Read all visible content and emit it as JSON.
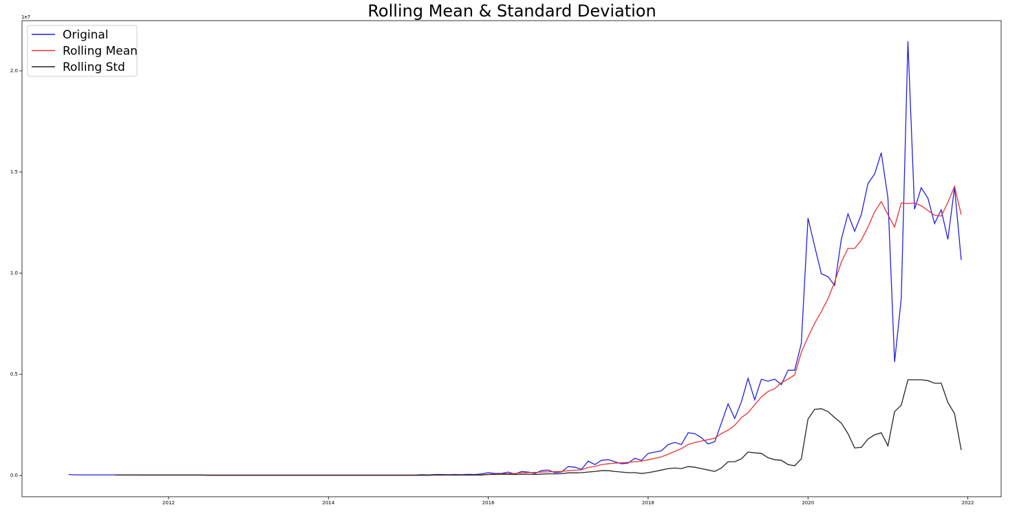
{
  "chart_data": {
    "type": "line",
    "title": "Rolling Mean & Standard Deviation",
    "y_offset_label": "1e7",
    "x": [
      "2010-10",
      "2010-11",
      "2010-12",
      "2011-01",
      "2011-02",
      "2011-03",
      "2011-04",
      "2011-05",
      "2011-06",
      "2011-07",
      "2011-08",
      "2011-09",
      "2011-10",
      "2011-11",
      "2011-12",
      "2012-01",
      "2012-02",
      "2012-03",
      "2012-04",
      "2012-05",
      "2012-06",
      "2012-07",
      "2012-08",
      "2012-09",
      "2012-10",
      "2012-11",
      "2012-12",
      "2013-01",
      "2013-02",
      "2013-03",
      "2013-04",
      "2013-05",
      "2013-06",
      "2013-07",
      "2013-08",
      "2013-09",
      "2013-10",
      "2013-11",
      "2013-12",
      "2014-01",
      "2014-02",
      "2014-03",
      "2014-04",
      "2014-05",
      "2014-06",
      "2014-07",
      "2014-08",
      "2014-09",
      "2014-10",
      "2014-11",
      "2014-12",
      "2015-01",
      "2015-02",
      "2015-03",
      "2015-04",
      "2015-05",
      "2015-06",
      "2015-07",
      "2015-08",
      "2015-09",
      "2015-10",
      "2015-11",
      "2015-12",
      "2016-01",
      "2016-02",
      "2016-03",
      "2016-04",
      "2016-05",
      "2016-06",
      "2016-07",
      "2016-08",
      "2016-09",
      "2016-10",
      "2016-11",
      "2016-12",
      "2017-01",
      "2017-02",
      "2017-03",
      "2017-04",
      "2017-05",
      "2017-06",
      "2017-07",
      "2017-08",
      "2017-09",
      "2017-10",
      "2017-11",
      "2017-12",
      "2018-01",
      "2018-02",
      "2018-03",
      "2018-04",
      "2018-05",
      "2018-06",
      "2018-07",
      "2018-08",
      "2018-09",
      "2018-10",
      "2018-11",
      "2018-12",
      "2019-01",
      "2019-02",
      "2019-03",
      "2019-04",
      "2019-05",
      "2019-06",
      "2019-07",
      "2019-08",
      "2019-09",
      "2019-10",
      "2019-11",
      "2019-12",
      "2020-01",
      "2020-02",
      "2020-03",
      "2020-04",
      "2020-05",
      "2020-06",
      "2020-07",
      "2020-08",
      "2020-09",
      "2020-10",
      "2020-11",
      "2020-12",
      "2021-01",
      "2021-02",
      "2021-03",
      "2021-04",
      "2021-05",
      "2021-06",
      "2021-07",
      "2021-08",
      "2021-09",
      "2021-10",
      "2021-11",
      "2021-12"
    ],
    "series": [
      {
        "name": "Original",
        "color": "#1f1fe0",
        "values": [
          0.005,
          0.003,
          0.003,
          0.003,
          0.003,
          0.003,
          0.003,
          0.003,
          0.003,
          0.003,
          0.003,
          0.002,
          0.002,
          0.002,
          0.002,
          0.002,
          0.002,
          0.002,
          0.002,
          0.002,
          0.002,
          0.002,
          0.002,
          0.002,
          0.002,
          0.002,
          0.002,
          0.002,
          0.002,
          0.002,
          0.002,
          0.002,
          0.002,
          0.002,
          0.002,
          0.002,
          0.002,
          0.002,
          0.002,
          0.002,
          0.002,
          0.002,
          0.002,
          0.002,
          0.002,
          0.002,
          0.002,
          0.002,
          0.002,
          0.002,
          0.002,
          0.002,
          0.002,
          0.004,
          0.003,
          0.005,
          0.005,
          0.004,
          0.005,
          0.004,
          0.006,
          0.005,
          0.008,
          0.014,
          0.01,
          0.01,
          0.017,
          0.007,
          0.02,
          0.017,
          0.01,
          0.024,
          0.027,
          0.014,
          0.017,
          0.044,
          0.041,
          0.03,
          0.071,
          0.054,
          0.075,
          0.078,
          0.068,
          0.058,
          0.061,
          0.085,
          0.075,
          0.109,
          0.116,
          0.122,
          0.153,
          0.163,
          0.153,
          0.211,
          0.207,
          0.187,
          0.156,
          0.167,
          0.259,
          0.354,
          0.282,
          0.364,
          0.48,
          0.374,
          0.476,
          0.466,
          0.476,
          0.449,
          0.52,
          0.52,
          0.653,
          1.272,
          1.133,
          0.997,
          0.983,
          0.939,
          1.167,
          1.293,
          1.207,
          1.289,
          1.442,
          1.49,
          1.595,
          1.371,
          0.561,
          0.874,
          2.146,
          1.316,
          1.422,
          1.371,
          1.245,
          1.313,
          1.167,
          1.425,
          1.065
        ]
      },
      {
        "name": "Rolling Mean",
        "color": "#e8302f",
        "values": [
          null,
          null,
          null,
          null,
          null,
          null,
          null,
          0.003,
          0.003,
          0.003,
          0.003,
          0.003,
          0.003,
          0.003,
          0.003,
          0.003,
          0.003,
          0.003,
          0.003,
          0.003,
          0.003,
          0.002,
          0.002,
          0.002,
          0.002,
          0.002,
          0.002,
          0.002,
          0.002,
          0.002,
          0.002,
          0.002,
          0.002,
          0.002,
          0.002,
          0.002,
          0.002,
          0.002,
          0.002,
          0.002,
          0.002,
          0.002,
          0.002,
          0.002,
          0.002,
          0.002,
          0.002,
          0.002,
          0.002,
          0.002,
          0.002,
          0.002,
          0.002,
          0.002,
          0.002,
          0.003,
          0.003,
          0.003,
          0.003,
          0.003,
          0.003,
          0.003,
          0.003,
          0.006,
          0.007,
          0.008,
          0.009,
          0.01,
          0.013,
          0.014,
          0.015,
          0.017,
          0.018,
          0.019,
          0.02,
          0.024,
          0.026,
          0.028,
          0.04,
          0.045,
          0.054,
          0.058,
          0.061,
          0.063,
          0.065,
          0.068,
          0.071,
          0.078,
          0.085,
          0.092,
          0.105,
          0.119,
          0.133,
          0.153,
          0.163,
          0.17,
          0.177,
          0.184,
          0.207,
          0.224,
          0.248,
          0.286,
          0.31,
          0.35,
          0.388,
          0.415,
          0.429,
          0.459,
          0.476,
          0.497,
          0.609,
          0.684,
          0.752,
          0.81,
          0.874,
          0.956,
          1.054,
          1.122,
          1.122,
          1.163,
          1.228,
          1.303,
          1.354,
          1.289,
          1.228,
          1.347,
          1.344,
          1.347,
          1.333,
          1.31,
          1.286,
          1.282,
          1.35,
          1.429,
          1.289
        ]
      },
      {
        "name": "Rolling Std",
        "color": "#222222",
        "values": [
          null,
          null,
          null,
          null,
          null,
          null,
          null,
          0.002,
          0.002,
          0.002,
          0.002,
          0.002,
          0.002,
          0.002,
          0.002,
          0.002,
          0.002,
          0.002,
          0.002,
          0.002,
          0.002,
          0.001,
          0.001,
          0.001,
          0.001,
          0.001,
          0.001,
          0.001,
          0.001,
          0.001,
          0.001,
          0.001,
          0.001,
          0.001,
          0.001,
          0.001,
          0.001,
          0.001,
          0.001,
          0.001,
          0.001,
          0.001,
          0.001,
          0.001,
          0.001,
          0.001,
          0.001,
          0.001,
          0.001,
          0.001,
          0.001,
          0.001,
          0.001,
          0.001,
          0.001,
          0.002,
          0.002,
          0.002,
          0.002,
          0.002,
          0.002,
          0.002,
          0.002,
          0.005,
          0.005,
          0.006,
          0.006,
          0.005,
          0.006,
          0.006,
          0.005,
          0.007,
          0.008,
          0.008,
          0.009,
          0.013,
          0.013,
          0.014,
          0.017,
          0.02,
          0.024,
          0.024,
          0.02,
          0.017,
          0.014,
          0.014,
          0.01,
          0.014,
          0.02,
          0.027,
          0.034,
          0.037,
          0.034,
          0.044,
          0.041,
          0.034,
          0.027,
          0.02,
          0.037,
          0.068,
          0.068,
          0.082,
          0.116,
          0.112,
          0.109,
          0.088,
          0.078,
          0.075,
          0.054,
          0.048,
          0.082,
          0.279,
          0.327,
          0.33,
          0.316,
          0.286,
          0.259,
          0.207,
          0.136,
          0.139,
          0.18,
          0.201,
          0.211,
          0.146,
          0.316,
          0.347,
          0.473,
          0.473,
          0.473,
          0.469,
          0.456,
          0.456,
          0.361,
          0.306,
          0.126
        ]
      }
    ],
    "xlim": [
      "2010-03",
      "2022-06"
    ],
    "xticks": [
      "2012",
      "2014",
      "2016",
      "2018",
      "2020",
      "2022"
    ],
    "ylim": [
      -0.105,
      2.248
    ],
    "yticks": [
      {
        "value": 0,
        "label": "0.0"
      },
      0.5,
      {
        "value": 1,
        "label": "1.0"
      },
      1.5,
      {
        "value": 2,
        "label": "2.0"
      }
    ],
    "legend": "upper left",
    "grid": false
  }
}
